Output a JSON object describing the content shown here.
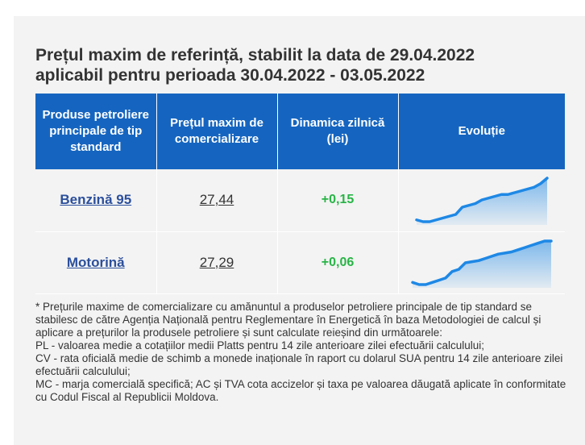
{
  "title": {
    "line1": "Prețul maxim de referință, stabilit la data de 29.04.2022",
    "line2": "aplicabil pentru perioada 30.04.2022 - 03.05.2022"
  },
  "table": {
    "headers": [
      "Produse petroliere principale de tip standard",
      "Prețul maxim de comercializare",
      "Dinamica zilnică (lei)",
      "Evoluție"
    ],
    "rows": [
      {
        "product": "Benzină 95",
        "price": "27,44",
        "delta": "+0,15",
        "trend": [
          25.6,
          25.5,
          25.5,
          25.6,
          25.7,
          25.8,
          25.9,
          26.3,
          26.4,
          26.5,
          26.7,
          26.8,
          26.9,
          27.0,
          27.0,
          27.1,
          27.2,
          27.3,
          27.4,
          27.6,
          27.9
        ]
      },
      {
        "product": "Motorină",
        "price": "27,29",
        "delta": "+0,06",
        "trend": [
          25.7,
          25.6,
          25.6,
          25.7,
          25.8,
          25.9,
          26.2,
          26.3,
          26.6,
          26.65,
          26.7,
          26.8,
          26.9,
          27.0,
          27.05,
          27.1,
          27.2,
          27.3,
          27.4,
          27.5,
          27.6,
          27.6
        ]
      }
    ],
    "accent_color": "#1565c0",
    "delta_color": "#28b446",
    "spark_color": "#1e88e5"
  },
  "notes": [
    "* Prețurile maxime de comercializare cu amănuntul a produselor petroliere principale de tip standard se stabilesc de către Agenția Națională pentru Reglementare în Energetică în baza Metodologiei de calcul și aplicare a prețurilor la produsele petroliere și sunt calculate reieșind din următoarele:",
    "PL - valoarea medie a cotațiilor medii Platts pentru 14 zile anterioare zilei efectuării calculului;",
    "CV - rata oficială medie de schimb a monede inaționale în raport cu dolarul SUA pentru 14 zile anterioare zilei efectuării calculului;",
    "MC - marja comercială specifică; AC și TVA cota accizelor și taxa pe valoarea dăugată aplicate în conformitate cu Codul Fiscal al Republicii Moldova."
  ]
}
